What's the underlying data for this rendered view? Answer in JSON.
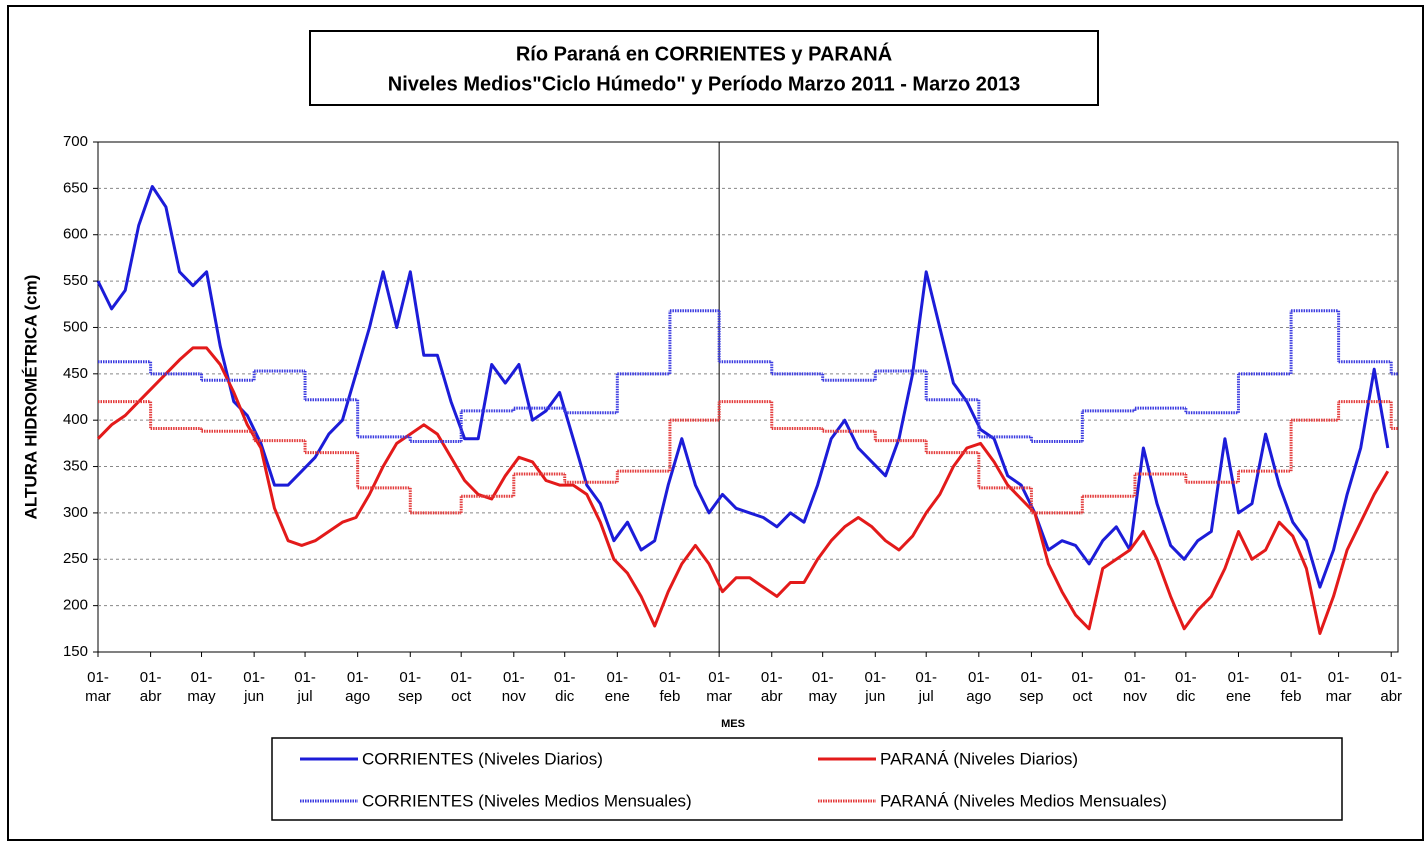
{
  "chart_data": {
    "type": "line",
    "title": "Río Paraná en CORRIENTES y PARANÁ",
    "subtitle": "Niveles Medios\"Ciclo Húmedo\" y Período Marzo 2011 - Marzo 2013",
    "x_label": "MES",
    "y_label": "ALTURA HIDROMÉTRICA (cm)",
    "xlim": [
      0,
      766
    ],
    "ylim": [
      150,
      700
    ],
    "yticks": [
      150,
      200,
      250,
      300,
      350,
      400,
      450,
      500,
      550,
      600,
      650,
      700
    ],
    "grid": true,
    "xticks": [
      {
        "value": 0,
        "label": "01-\nmar"
      },
      {
        "value": 31,
        "label": "01-\nabr"
      },
      {
        "value": 61,
        "label": "01-\nmay"
      },
      {
        "value": 92,
        "label": "01-\njun"
      },
      {
        "value": 122,
        "label": "01-\njul"
      },
      {
        "value": 153,
        "label": "01-\nago"
      },
      {
        "value": 184,
        "label": "01-\nsep"
      },
      {
        "value": 214,
        "label": "01-\noct"
      },
      {
        "value": 245,
        "label": "01-\nnov"
      },
      {
        "value": 275,
        "label": "01-\ndic"
      },
      {
        "value": 306,
        "label": "01-\nene"
      },
      {
        "value": 337,
        "label": "01-\nfeb"
      },
      {
        "value": 366,
        "label": "01-\nmar"
      },
      {
        "value": 397,
        "label": "01-\nabr"
      },
      {
        "value": 427,
        "label": "01-\nmay"
      },
      {
        "value": 458,
        "label": "01-\njun"
      },
      {
        "value": 488,
        "label": "01-\njul"
      },
      {
        "value": 519,
        "label": "01-\nago"
      },
      {
        "value": 550,
        "label": "01-\nsep"
      },
      {
        "value": 580,
        "label": "01-\noct"
      },
      {
        "value": 611,
        "label": "01-\nnov"
      },
      {
        "value": 641,
        "label": "01-\ndic"
      },
      {
        "value": 672,
        "label": "01-\nene"
      },
      {
        "value": 703,
        "label": "01-\nfeb"
      },
      {
        "value": 731,
        "label": "01-\nmar"
      },
      {
        "value": 762,
        "label": "01-\nabr"
      }
    ],
    "x": [
      0,
      8,
      16,
      24,
      32,
      40,
      48,
      56,
      64,
      72,
      80,
      88,
      96,
      104,
      112,
      120,
      128,
      136,
      144,
      152,
      160,
      168,
      176,
      184,
      192,
      200,
      208,
      216,
      224,
      232,
      240,
      248,
      256,
      264,
      272,
      280,
      288,
      296,
      304,
      312,
      320,
      328,
      336,
      344,
      352,
      360,
      368,
      376,
      384,
      392,
      400,
      408,
      416,
      424,
      432,
      440,
      448,
      456,
      464,
      472,
      480,
      488,
      496,
      504,
      512,
      520,
      528,
      536,
      544,
      552,
      560,
      568,
      576,
      584,
      592,
      600,
      608,
      616,
      624,
      632,
      640,
      648,
      656,
      664,
      672,
      680,
      688,
      696,
      704,
      712,
      720,
      728,
      736,
      744,
      752,
      760
    ],
    "series": [
      {
        "name": "CORRIENTES (Niveles Diarios)",
        "color": "#1c1cd8",
        "style": "solid",
        "values": [
          550,
          520,
          540,
          610,
          652,
          630,
          560,
          545,
          560,
          480,
          420,
          405,
          375,
          330,
          330,
          345,
          360,
          385,
          400,
          450,
          500,
          560,
          500,
          560,
          470,
          470,
          420,
          380,
          380,
          460,
          440,
          460,
          400,
          410,
          430,
          380,
          330,
          310,
          270,
          290,
          260,
          270,
          330,
          380,
          330,
          300,
          320,
          305,
          300,
          295,
          285,
          300,
          290,
          330,
          380,
          400,
          370,
          355,
          340,
          380,
          450,
          560,
          500,
          440,
          420,
          390,
          380,
          340,
          330,
          300,
          260,
          270,
          265,
          245,
          270,
          285,
          260,
          370,
          310,
          265,
          250,
          270,
          280,
          380,
          300,
          310,
          385,
          330,
          290,
          270,
          220,
          260,
          320,
          370,
          455,
          370
        ]
      },
      {
        "name": "PARANÁ (Niveles Diarios)",
        "color": "#e31a1a",
        "style": "solid",
        "values": [
          380,
          395,
          405,
          420,
          435,
          450,
          465,
          478,
          478,
          460,
          430,
          395,
          370,
          305,
          270,
          265,
          270,
          280,
          290,
          295,
          320,
          350,
          375,
          385,
          395,
          385,
          360,
          335,
          320,
          315,
          340,
          360,
          355,
          335,
          330,
          330,
          320,
          290,
          250,
          235,
          210,
          178,
          215,
          245,
          265,
          245,
          215,
          230,
          230,
          220,
          210,
          225,
          225,
          250,
          270,
          285,
          295,
          285,
          270,
          260,
          275,
          300,
          320,
          350,
          370,
          375,
          355,
          330,
          315,
          300,
          245,
          215,
          190,
          175,
          240,
          250,
          260,
          280,
          250,
          210,
          175,
          195,
          210,
          240,
          280,
          250,
          260,
          290,
          275,
          240,
          170,
          210,
          260,
          290,
          320,
          345
        ]
      },
      {
        "name": "CORRIENTES (Niveles Medios Mensuales)",
        "color": "#3a3ae0",
        "style": "dotted",
        "x": [
          0,
          31,
          61,
          92,
          122,
          153,
          184,
          214,
          245,
          275,
          306,
          337,
          366,
          397,
          427,
          458,
          488,
          519,
          550,
          580,
          611,
          641,
          672,
          703,
          731,
          762
        ],
        "values": [
          463,
          450,
          443,
          453,
          422,
          382,
          377,
          410,
          413,
          408,
          450,
          518,
          463,
          450,
          443,
          453,
          422,
          382,
          377,
          410,
          413,
          408,
          450,
          518,
          463,
          450
        ]
      },
      {
        "name": "PARANÁ (Niveles Medios Mensuales)",
        "color": "#e33a3a",
        "style": "dotted",
        "x": [
          0,
          31,
          61,
          92,
          122,
          153,
          184,
          214,
          245,
          275,
          306,
          337,
          366,
          397,
          427,
          458,
          488,
          519,
          550,
          580,
          611,
          641,
          672,
          703,
          731,
          762
        ],
        "values": [
          420,
          391,
          388,
          378,
          365,
          327,
          300,
          318,
          342,
          333,
          345,
          400,
          420,
          391,
          388,
          378,
          365,
          327,
          300,
          318,
          342,
          333,
          345,
          400,
          420,
          391
        ]
      }
    ]
  }
}
